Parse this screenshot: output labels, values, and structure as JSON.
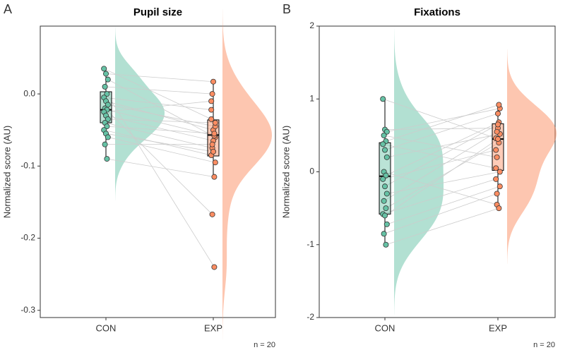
{
  "chart_data": [
    {
      "type": "raincloud",
      "panel_label": "A",
      "title": "Pupil size",
      "y_label": "Normalized score (AU)",
      "note": "n = 20",
      "series": [
        {
          "name": "CON",
          "color": "#66c2a5",
          "values": [
            0.035,
            0.028,
            0.02,
            0.01,
            0.0,
            -0.005,
            -0.01,
            -0.015,
            -0.02,
            -0.022,
            -0.025,
            -0.03,
            -0.035,
            -0.04,
            -0.045,
            -0.05,
            -0.055,
            -0.06,
            -0.07,
            -0.09
          ]
        },
        {
          "name": "EXP",
          "color": "#fc8d62",
          "values": [
            -0.035,
            0.017,
            -0.06,
            0.0,
            -0.24,
            -0.022,
            -0.05,
            -0.045,
            -0.167,
            -0.058,
            -0.01,
            -0.065,
            -0.04,
            -0.075,
            -0.055,
            -0.085,
            -0.08,
            -0.095,
            -0.07,
            -0.115
          ]
        }
      ],
      "boxes": [
        {
          "whisker_low": -0.09,
          "q1": -0.04,
          "median": -0.022,
          "q3": 0.003,
          "whisker_high": 0.035
        },
        {
          "whisker_low": -0.115,
          "q1": -0.086,
          "median": -0.057,
          "q3": -0.036,
          "whisker_high": 0.017
        }
      ],
      "ylim": [
        -0.31,
        0.094
      ],
      "yticks": [
        -0.3,
        -0.2,
        -0.1,
        {
          "value": 0.0,
          "label": "0.0"
        }
      ]
    },
    {
      "type": "raincloud",
      "panel_label": "B",
      "title": "Fixations",
      "y_label": "Normalized score (AU)",
      "note": "n = 20",
      "series": [
        {
          "name": "CON",
          "color": "#66c2a5",
          "values": [
            1.0,
            0.58,
            0.55,
            0.5,
            0.42,
            0.38,
            0.3,
            0.2,
            0.0,
            -0.05,
            -0.1,
            -0.2,
            -0.3,
            -0.4,
            -0.5,
            -0.58,
            -0.6,
            -0.72,
            -0.85,
            -1.0
          ]
        },
        {
          "name": "EXP",
          "color": "#fc8d62",
          "values": [
            0.46,
            0.6,
            0.87,
            0.2,
            0.92,
            0.05,
            0.8,
            0.52,
            -0.45,
            0.68,
            0.3,
            0.65,
            0.0,
            0.55,
            0.4,
            -0.1,
            0.45,
            -0.2,
            -0.3,
            -0.5
          ]
        }
      ],
      "boxes": [
        {
          "whisker_low": -1.0,
          "q1": -0.58,
          "median": -0.06,
          "q3": 0.4,
          "whisker_high": 1.0
        },
        {
          "whisker_low": -0.5,
          "q1": 0.02,
          "median": 0.45,
          "q3": 0.66,
          "whisker_high": 0.92
        }
      ],
      "ylim": [
        -2.0,
        2.0
      ],
      "yticks": [
        -2,
        -1,
        0,
        1,
        2
      ]
    }
  ]
}
